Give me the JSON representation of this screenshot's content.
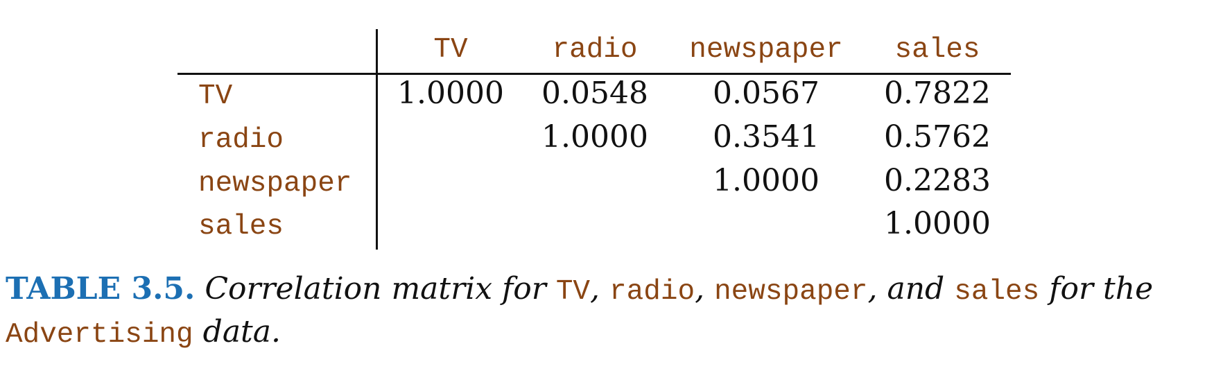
{
  "table": {
    "columns": [
      "TV",
      "radio",
      "newspaper",
      "sales"
    ],
    "rows": [
      {
        "label": "TV",
        "cells": [
          "1.0000",
          "0.0548",
          "0.0567",
          "0.7822"
        ]
      },
      {
        "label": "radio",
        "cells": [
          "",
          "1.0000",
          "0.3541",
          "0.5762"
        ]
      },
      {
        "label": "newspaper",
        "cells": [
          "",
          "",
          "1.0000",
          "0.2283"
        ]
      },
      {
        "label": "sales",
        "cells": [
          "",
          "",
          "",
          "1.0000"
        ]
      }
    ]
  },
  "caption": {
    "label": "TABLE 3.5.",
    "t1": "Correlation matrix for",
    "c1": "TV",
    "t2": ",",
    "c2": "radio",
    "t3": ",",
    "c3": "newspaper",
    "t4": ", and",
    "c4": "sales",
    "t5": "for the",
    "c5": "Advertising",
    "t6": "data."
  },
  "colors": {
    "code": "#8a4513",
    "label": "#1c6fb3",
    "text": "#111111"
  }
}
